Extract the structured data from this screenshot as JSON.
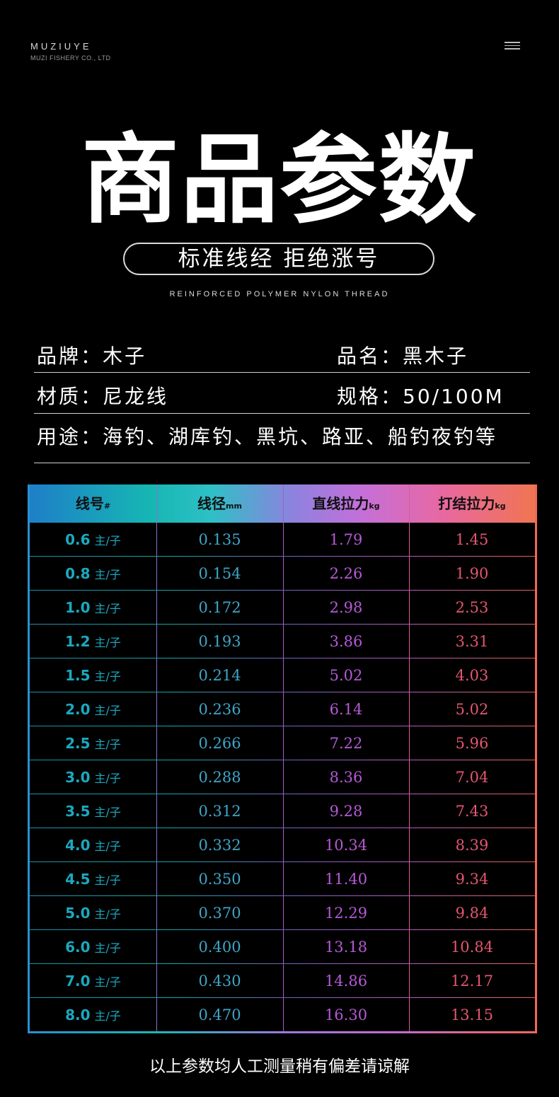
{
  "brand": {
    "name": "MUZIUYE",
    "subtitle": "MUZI FISHERY CO., LTD"
  },
  "header": {
    "title": "商品参数",
    "pill_text": "标准线经 拒绝涨号",
    "english_subtitle": "REINFORCED POLYMER NYLON THREAD"
  },
  "specs": {
    "brand_label": "品牌：",
    "brand_value": "木子",
    "name_label": "品名：",
    "name_value": "黑木子",
    "material_label": "材质：",
    "material_value": "尼龙线",
    "size_label": "规格：",
    "size_value": "50/100M",
    "usage_label": "用途：",
    "usage_value": "海钓、湖库钓、黑坑、路亚、船钓夜钓等"
  },
  "table": {
    "headers": [
      {
        "label": "线号",
        "unit": "#"
      },
      {
        "label": "线径",
        "unit": "mm"
      },
      {
        "label": "直线拉力",
        "unit": "kg"
      },
      {
        "label": "打结拉力",
        "unit": "kg"
      }
    ],
    "unit_suffix": "主/子",
    "rows": [
      [
        "0.6",
        "0.135",
        "1.79",
        "1.45"
      ],
      [
        "0.8",
        "0.154",
        "2.26",
        "1.90"
      ],
      [
        "1.0",
        "0.172",
        "2.98",
        "2.53"
      ],
      [
        "1.2",
        "0.193",
        "3.86",
        "3.31"
      ],
      [
        "1.5",
        "0.214",
        "5.02",
        "4.03"
      ],
      [
        "2.0",
        "0.236",
        "6.14",
        "5.02"
      ],
      [
        "2.5",
        "0.266",
        "7.22",
        "5.96"
      ],
      [
        "3.0",
        "0.288",
        "8.36",
        "7.04"
      ],
      [
        "3.5",
        "0.312",
        "9.28",
        "7.43"
      ],
      [
        "4.0",
        "0.332",
        "10.34",
        "8.39"
      ],
      [
        "4.5",
        "0.350",
        "11.40",
        "9.34"
      ],
      [
        "5.0",
        "0.370",
        "12.29",
        "9.84"
      ],
      [
        "6.0",
        "0.400",
        "13.18",
        "10.84"
      ],
      [
        "7.0",
        "0.430",
        "14.86",
        "12.17"
      ],
      [
        "8.0",
        "0.470",
        "16.30",
        "13.15"
      ]
    ]
  },
  "footer": {
    "note": "以上参数均人工测量稍有偏差请谅解"
  },
  "colors": {
    "background": "#000000",
    "col1": "#1aa9c0",
    "col2": "#3fa6c8",
    "col3": "#b65ad6",
    "col4": "#e4566e"
  },
  "icons": {
    "menu": "hamburger-menu-icon"
  }
}
